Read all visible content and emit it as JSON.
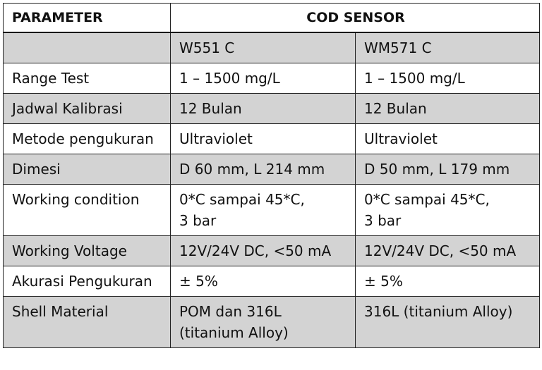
{
  "table": {
    "header": {
      "parameter": "PARAMETER",
      "sensor": "COD SENSOR"
    },
    "rows": [
      {
        "label": "",
        "a": "W551 C",
        "b": "WM571 C",
        "shaded": true
      },
      {
        "label": "Range Test",
        "a": "1 – 1500 mg/L",
        "b": "1 – 1500 mg/L",
        "shaded": false
      },
      {
        "label": "Jadwal Kalibrasi",
        "a": "12 Bulan",
        "b": "12 Bulan",
        "shaded": true
      },
      {
        "label": "Metode pengukuran",
        "a": "Ultraviolet",
        "b": "Ultraviolet",
        "shaded": false
      },
      {
        "label": "Dimesi",
        "a": "D 60 mm, L 214 mm",
        "b": "D 50 mm, L 179 mm",
        "shaded": true
      },
      {
        "label": "Working condition",
        "a": "0*C sampai 45*C,\n3 bar",
        "b": "0*C sampai 45*C,\n3 bar",
        "shaded": false
      },
      {
        "label": "Working Voltage",
        "a": "12V/24V DC, <50 mA",
        "b": "12V/24V DC, <50 mA",
        "shaded": true
      },
      {
        "label": "Akurasi Pengukuran",
        "a": "± 5%",
        "b": "± 5%",
        "shaded": false
      },
      {
        "label": "Shell Material",
        "a": "POM dan 316L\n(titanium Alloy)",
        "b": "316L (titanium Alloy)",
        "shaded": true
      }
    ]
  }
}
